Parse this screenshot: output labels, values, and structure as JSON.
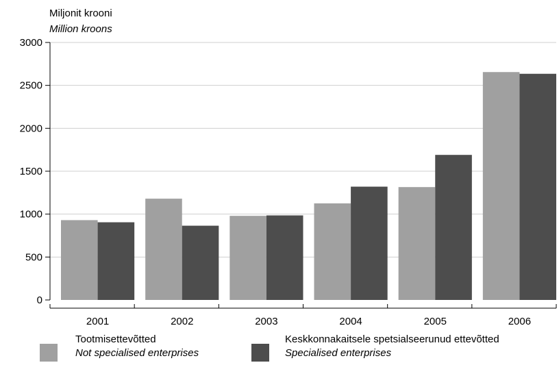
{
  "chart_data": {
    "type": "bar",
    "ylabel": "Miljonit krooni",
    "ylabel_en": "Million kroons",
    "categories": [
      "2001",
      "2002",
      "2003",
      "2004",
      "2005",
      "2006"
    ],
    "ylim": [
      0,
      3000
    ],
    "yticks": [
      0,
      500,
      1000,
      1500,
      2000,
      2500,
      3000
    ],
    "grid": true,
    "legend_position": "bottom",
    "series": [
      {
        "name": "Tootmisettevõtted",
        "name_en": "Not specialised enterprises",
        "color": "#a0a0a0",
        "values": [
          930,
          1180,
          980,
          1125,
          1315,
          2655
        ]
      },
      {
        "name": "Keskkonnakaitsele spetsialseerunud ettevõtted",
        "name_en": "Specialised enterprises",
        "color": "#4d4d4d",
        "values": [
          905,
          865,
          985,
          1320,
          1690,
          2635
        ]
      }
    ]
  }
}
